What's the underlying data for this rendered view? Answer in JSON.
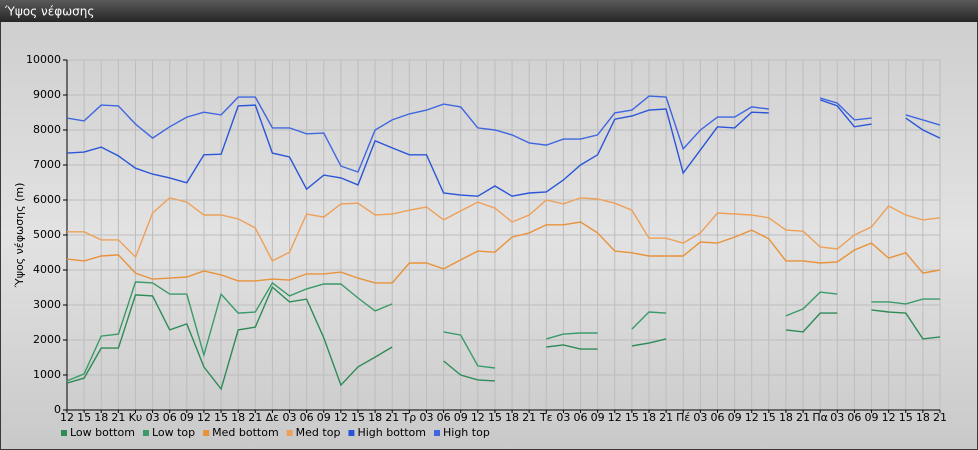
{
  "window_title": "Ύψος νέφωσης",
  "chart_data": {
    "type": "line",
    "y_label": "Ύψος νέφωσης (m)",
    "categories": [
      "12",
      "15",
      "18",
      "21",
      "Κυ",
      "03",
      "06",
      "09",
      "12",
      "15",
      "18",
      "21",
      "Δε",
      "03",
      "06",
      "09",
      "12",
      "15",
      "18",
      "21",
      "Τρ",
      "03",
      "06",
      "09",
      "12",
      "15",
      "18",
      "21",
      "Τε",
      "03",
      "06",
      "09",
      "12",
      "15",
      "18",
      "21",
      "Πέ",
      "03",
      "06",
      "09",
      "12",
      "15",
      "18",
      "21",
      "Πα",
      "03",
      "06",
      "09",
      "12",
      "15",
      "18",
      "21"
    ],
    "ylim": [
      0,
      10000
    ],
    "yticks": [
      0,
      1000,
      2000,
      3000,
      4000,
      5000,
      6000,
      7000,
      8000,
      9000,
      10000
    ],
    "grid": true,
    "legend": "bottom",
    "series": [
      {
        "name": "Low bottom",
        "color": "#2e8b57",
        "values": [
          770,
          910,
          1770,
          1770,
          3290,
          3260,
          2290,
          2460,
          1230,
          600,
          2290,
          2370,
          3510,
          3090,
          3170,
          2060,
          710,
          1230,
          1510,
          1800,
          null,
          null,
          1400,
          1000,
          860,
          830,
          null,
          null,
          1800,
          1860,
          1740,
          1740,
          null,
          1830,
          1910,
          2030,
          null,
          null,
          null,
          null,
          null,
          null,
          2290,
          2230,
          2770,
          2770,
          null,
          2860,
          2800,
          2770,
          2030,
          2090
        ]
      },
      {
        "name": "Low top",
        "color": "#3a9a68",
        "values": [
          830,
          1030,
          2110,
          2170,
          3660,
          3630,
          3310,
          3310,
          1570,
          3310,
          2770,
          2800,
          3630,
          3260,
          3460,
          3600,
          3600,
          3200,
          2830,
          3030,
          null,
          null,
          2230,
          2140,
          1260,
          1200,
          null,
          null,
          2030,
          2170,
          2200,
          2200,
          null,
          2310,
          2800,
          2770,
          null,
          null,
          null,
          null,
          null,
          null,
          2690,
          2890,
          3370,
          3310,
          null,
          3090,
          3090,
          3030,
          3170,
          3170
        ]
      },
      {
        "name": "Med bottom",
        "color": "#e8923a",
        "values": [
          4310,
          4260,
          4400,
          4430,
          3910,
          3740,
          3770,
          3800,
          3970,
          3860,
          3690,
          3690,
          3740,
          3710,
          3890,
          3890,
          3940,
          3770,
          3630,
          3630,
          4200,
          4200,
          4030,
          4290,
          4540,
          4510,
          4940,
          5060,
          5290,
          5290,
          5370,
          5060,
          4540,
          4490,
          4400,
          4400,
          4400,
          4800,
          4770,
          4940,
          5140,
          4890,
          4260,
          4260,
          4200,
          4230,
          4570,
          4770,
          4340,
          4490,
          3910,
          4000
        ]
      },
      {
        "name": "Med top",
        "color": "#eea058",
        "values": [
          5090,
          5090,
          4860,
          4860,
          4370,
          5630,
          6060,
          5940,
          5570,
          5570,
          5460,
          5200,
          4260,
          4510,
          5600,
          5510,
          5890,
          5910,
          5570,
          5600,
          5710,
          5800,
          5430,
          5690,
          5940,
          5770,
          5370,
          5570,
          6000,
          5890,
          6060,
          6030,
          5910,
          5710,
          4910,
          4910,
          4770,
          5060,
          5630,
          5600,
          5570,
          5490,
          5140,
          5110,
          4660,
          4600,
          5000,
          5230,
          5830,
          5570,
          5430,
          5490
        ]
      },
      {
        "name": "High bottom",
        "color": "#2a55d8",
        "values": [
          7340,
          7370,
          7510,
          7260,
          6910,
          6740,
          6630,
          6490,
          7290,
          7310,
          8690,
          8710,
          7340,
          7230,
          6310,
          6710,
          6630,
          6430,
          7690,
          7490,
          7290,
          7290,
          6200,
          6140,
          6110,
          6400,
          6110,
          6200,
          6230,
          6570,
          7000,
          7290,
          8310,
          8400,
          8570,
          8600,
          6770,
          7430,
          8090,
          8060,
          8510,
          8490,
          null,
          null,
          8860,
          8690,
          8090,
          8170,
          null,
          8340,
          8000,
          7770
        ]
      },
      {
        "name": "High top",
        "color": "#3f66e0",
        "values": [
          8340,
          8260,
          8710,
          8690,
          8170,
          7770,
          8090,
          8370,
          8510,
          8430,
          8940,
          8940,
          8060,
          8060,
          7890,
          7910,
          6970,
          6800,
          8000,
          8290,
          8460,
          8570,
          8740,
          8660,
          8060,
          8000,
          7860,
          7630,
          7570,
          7740,
          7740,
          7860,
          8490,
          8570,
          8970,
          8940,
          7460,
          8000,
          8370,
          8370,
          8660,
          8600,
          null,
          null,
          8910,
          8770,
          8290,
          8340,
          null,
          8430,
          8290,
          8140
        ]
      }
    ]
  }
}
